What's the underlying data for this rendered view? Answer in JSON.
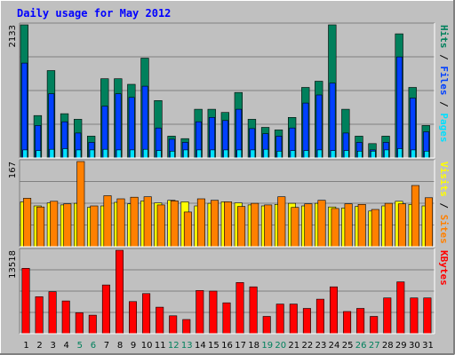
{
  "title": "Daily usage for May 2012",
  "colors": {
    "background": "#c0c0c0",
    "plot": "#c0c0c0",
    "title": "#0000ff",
    "hits": "#00805c",
    "files": "#0040ff",
    "pages": "#00e0ff",
    "visits": "#ffff00",
    "sites": "#ff8000",
    "kbytes": "#ff0000",
    "weekend_label": "#00805c",
    "weekday_label": "#000000"
  },
  "chart_data": {
    "type": "bar",
    "title": "Daily usage for May 2012",
    "categories": [
      "1",
      "2",
      "3",
      "4",
      "5",
      "6",
      "7",
      "8",
      "9",
      "10",
      "11",
      "12",
      "13",
      "14",
      "15",
      "16",
      "17",
      "18",
      "19",
      "20",
      "21",
      "22",
      "23",
      "24",
      "25",
      "26",
      "27",
      "28",
      "29",
      "30",
      "31"
    ],
    "weekend_days": [
      "5",
      "6",
      "12",
      "13",
      "19",
      "20",
      "26",
      "27"
    ],
    "panels": [
      {
        "name": "hits-files-pages",
        "ymax_label": "2133",
        "ymax": 2133,
        "axis_label_parts": [
          {
            "text": "Pages",
            "color": "#00e0ff"
          },
          {
            "text": " / ",
            "color": "#000000"
          },
          {
            "text": "Files",
            "color": "#0040ff"
          },
          {
            "text": " / ",
            "color": "#000000"
          },
          {
            "text": "Hits",
            "color": "#00805c"
          }
        ],
        "series": [
          {
            "name": "Hits",
            "color": "#00805c",
            "values": [
              2133,
              680,
              1400,
              710,
              620,
              350,
              1270,
              1270,
              1180,
              1600,
              920,
              350,
              310,
              780,
              780,
              730,
              1050,
              620,
              490,
              450,
              650,
              1130,
              1230,
              2133,
              780,
              350,
              230,
              350,
              1990,
              1130,
              520
            ]
          },
          {
            "name": "Files",
            "color": "#0040ff",
            "values": [
              1520,
              520,
              1030,
              580,
              400,
              250,
              830,
              1030,
              970,
              1150,
              480,
              300,
              250,
              580,
              650,
              600,
              780,
              470,
              390,
              350,
              480,
              880,
              1010,
              1200,
              400,
              250,
              130,
              250,
              1620,
              960,
              420
            ]
          },
          {
            "name": "Pages",
            "color": "#00e0ff",
            "values": [
              130,
              120,
              140,
              150,
              130,
              130,
              140,
              130,
              130,
              140,
              120,
              110,
              130,
              130,
              130,
              130,
              130,
              130,
              140,
              110,
              120,
              120,
              130,
              120,
              120,
              110,
              110,
              130,
              150,
              130,
              110
            ]
          }
        ]
      },
      {
        "name": "visits-sites",
        "ymax_label": "167",
        "ymax": 167,
        "axis_label_parts": [
          {
            "text": "Sites",
            "color": "#ff8000"
          },
          {
            "text": " / ",
            "color": "#000000"
          },
          {
            "text": "Visits",
            "color": "#ffff00"
          }
        ],
        "series": [
          {
            "name": "Visits",
            "color": "#ffff00",
            "values": [
              88,
              80,
              86,
              82,
              85,
              77,
              80,
              87,
              84,
              90,
              86,
              91,
              88,
              80,
              85,
              88,
              86,
              82,
              80,
              83,
              85,
              80,
              85,
              78,
              76,
              79,
              70,
              80,
              89,
              83,
              80
            ]
          },
          {
            "name": "Sites",
            "color": "#ff8000",
            "values": [
              95,
              78,
              89,
              84,
              167,
              80,
              100,
              94,
              97,
              98,
              82,
              90,
              68,
              94,
              91,
              88,
              79,
              85,
              82,
              98,
              77,
              84,
              91,
              75,
              84,
              83,
              73,
              85,
              84,
              120,
              96
            ]
          }
        ]
      },
      {
        "name": "kbytes",
        "ymax_label": "13518",
        "ymax": 13518,
        "axis_label_parts": [
          {
            "text": "KBytes",
            "color": "#ff0000"
          }
        ],
        "series": [
          {
            "name": "KBytes",
            "color": "#ff0000",
            "values": [
              10600,
              6000,
              6800,
              5300,
              3400,
              3000,
              7900,
              13518,
              5200,
              6500,
              4300,
              2900,
              2300,
              7000,
              6900,
              5000,
              8300,
              7600,
              2800,
              4800,
              4800,
              4100,
              5600,
              7600,
              3600,
              4100,
              2800,
              5800,
              8400,
              5800,
              5800
            ]
          }
        ]
      }
    ]
  }
}
